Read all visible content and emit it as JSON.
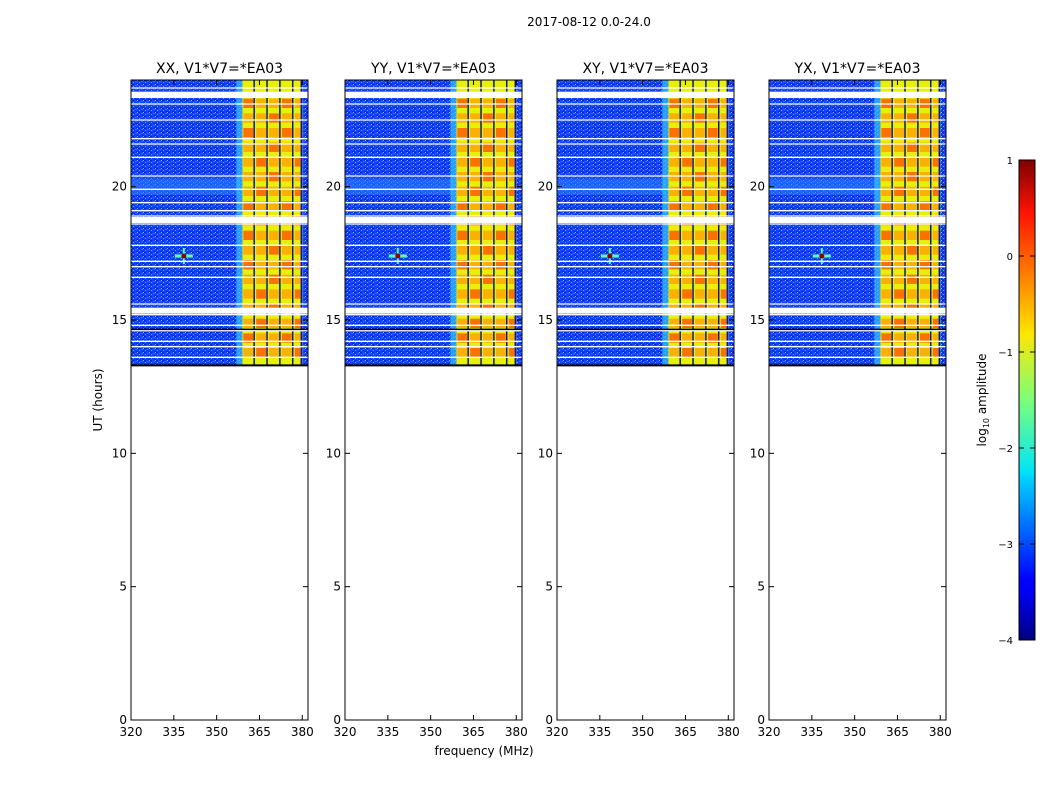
{
  "figure": {
    "suptitle": "2017-08-12 0.0-24.0",
    "xlabel": "frequency (MHz)",
    "ylabel": "UT (hours)"
  },
  "chart_data": {
    "type": "heatmap",
    "xlim": [
      320,
      382
    ],
    "ylim": [
      0,
      24
    ],
    "xticks": [
      320,
      335,
      350,
      365,
      380
    ],
    "yticks": [
      0,
      5,
      10,
      15,
      20
    ],
    "data_time_range": [
      13.3,
      24
    ],
    "rfi_band_mhz": [
      359,
      380
    ],
    "rfi_spike": {
      "frequency": 338.5,
      "ut": 17.4
    },
    "panels": [
      {
        "title": "XX, V1*V7=*EA03",
        "label_data_time_range": [
          13.3,
          24
        ]
      },
      {
        "title": "YY, V1*V7=*EA03",
        "label_data_time_range": [
          13.3,
          24
        ]
      },
      {
        "title": "XY, V1*V7=*EA03",
        "label_data_time_range": [
          13.3,
          24
        ]
      },
      {
        "title": "YX, V1*V7=*EA03",
        "label_data_time_range": [
          13.3,
          24
        ]
      }
    ],
    "colorbar": {
      "label": "log10 amplitude",
      "range": [
        -4,
        1
      ],
      "ticks": [
        -4,
        -3,
        -2,
        -1,
        0,
        1
      ],
      "colormap": "jet"
    }
  }
}
